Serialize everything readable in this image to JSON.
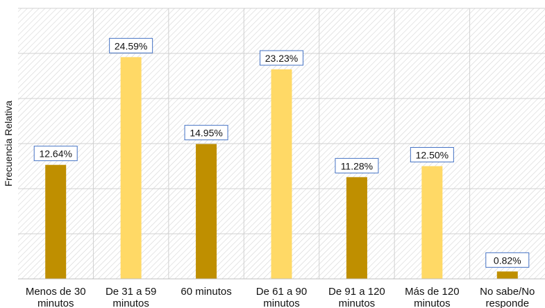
{
  "chart_data": {
    "type": "bar",
    "categories": [
      [
        "Menos de 30",
        "minutos"
      ],
      [
        "De 31 a 59",
        "minutos"
      ],
      [
        "60 minutos"
      ],
      [
        "De 61 a 90",
        "minutos"
      ],
      [
        "De 91 a 120",
        "minutos"
      ],
      [
        "Más de 120",
        "minutos"
      ],
      [
        "No sabe/No",
        "responde"
      ]
    ],
    "values": [
      12.64,
      24.59,
      14.95,
      23.23,
      11.28,
      12.5,
      0.82
    ],
    "data_labels": [
      "12.64%",
      "24.59%",
      "14.95%",
      "23.23%",
      "11.28%",
      "12.50%",
      "0.82%"
    ],
    "title": "",
    "xlabel": "",
    "ylabel": "Frecuencia Relativa",
    "ylim": [
      0,
      30
    ],
    "grid": true,
    "bar_colors": [
      "#bf8f00",
      "#ffd966",
      "#bf8f00",
      "#ffd966",
      "#bf8f00",
      "#ffd966",
      "#bf8f00"
    ],
    "label_border_color": "#4472c4"
  }
}
